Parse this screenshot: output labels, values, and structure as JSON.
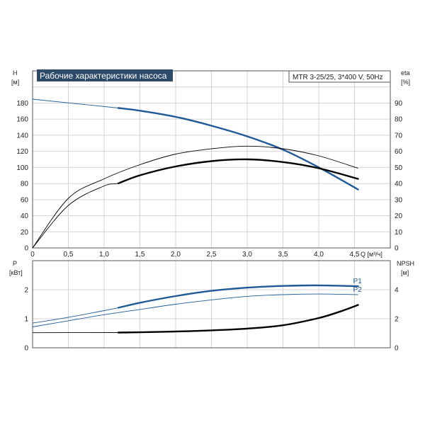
{
  "chart_data": [
    {
      "type": "line",
      "title": "Рабочие характеристики насоса",
      "model": "MTR 3-25/25, 3*400 V, 50Hz",
      "y_label_left": [
        "H",
        "[м]"
      ],
      "y_label_right": [
        "eta",
        "[%]"
      ],
      "x_label": "Q [м³/ч]",
      "xlim": [
        0,
        5
      ],
      "ylim_left": [
        0,
        200
      ],
      "ylim_right": [
        0,
        100
      ],
      "x_ticks": [
        "0",
        "0,5",
        "1,0",
        "1,5",
        "2,0",
        "2,5",
        "3,0",
        "3,5",
        "4,0",
        "4,5"
      ],
      "y_ticks_left": [
        "0",
        "20",
        "40",
        "60",
        "80",
        "100",
        "120",
        "140",
        "160",
        "180"
      ],
      "y_ticks_right": [
        "0",
        "10",
        "20",
        "30",
        "40",
        "50",
        "60",
        "70",
        "80",
        "90"
      ],
      "grid": true,
      "series": [
        {
          "axis": "left",
          "color": "#1f5a96",
          "x": [
            0,
            1.2,
            1.5,
            2.0,
            2.5,
            3.0,
            3.5,
            4.0,
            4.55
          ],
          "values": [
            168,
            158,
            155,
            148,
            138,
            126,
            111,
            91,
            66
          ]
        },
        {
          "axis": "right",
          "color": "#000000",
          "x": [
            0,
            0.5,
            1.0,
            1.2,
            1.5,
            2.0,
            2.5,
            3.0,
            3.5,
            4.0,
            4.55
          ],
          "values": [
            0,
            24,
            35,
            36.5,
            41,
            46,
            49,
            50,
            48.5,
            45,
            39
          ]
        },
        {
          "axis": "right",
          "color": "#000000",
          "x": [
            0,
            0.5,
            1.0,
            1.5,
            2.0,
            2.5,
            3.0,
            3.5,
            4.0,
            4.55
          ],
          "values": [
            0,
            28,
            39,
            47,
            53,
            56,
            57.5,
            56,
            52,
            45
          ]
        }
      ]
    },
    {
      "type": "line",
      "y_label_left": [
        "P",
        "[кВт]"
      ],
      "y_label_right": [
        "NPSH",
        "[м]"
      ],
      "xlim": [
        0,
        5
      ],
      "ylim_left": [
        0,
        3
      ],
      "ylim_right": [
        0,
        6
      ],
      "y_ticks_left": [
        "0",
        "1",
        "2"
      ],
      "y_ticks_right": [
        "0",
        "2",
        "4"
      ],
      "grid": true,
      "series": [
        {
          "name": "P1",
          "axis": "left",
          "color": "#1f5a96",
          "x": [
            0,
            0.5,
            1.0,
            1.2,
            1.5,
            2.0,
            2.5,
            3.0,
            3.5,
            4.0,
            4.55
          ],
          "values": [
            0.85,
            1.05,
            1.28,
            1.38,
            1.55,
            1.78,
            1.96,
            2.07,
            2.13,
            2.15,
            2.12
          ]
        },
        {
          "name": "P2",
          "axis": "left",
          "color": "#1f5a96",
          "x": [
            0,
            0.5,
            1.0,
            1.5,
            2.0,
            2.5,
            3.0,
            3.5,
            4.0,
            4.55
          ],
          "values": [
            0.72,
            0.93,
            1.14,
            1.32,
            1.5,
            1.65,
            1.77,
            1.83,
            1.85,
            1.83
          ]
        },
        {
          "axis": "right",
          "color": "#000000",
          "x": [
            0,
            1.2,
            1.5,
            2.0,
            2.5,
            3.0,
            3.5,
            4.0,
            4.3,
            4.55
          ],
          "values": [
            1.04,
            1.05,
            1.07,
            1.12,
            1.2,
            1.32,
            1.55,
            2.05,
            2.5,
            2.95
          ]
        }
      ]
    }
  ]
}
